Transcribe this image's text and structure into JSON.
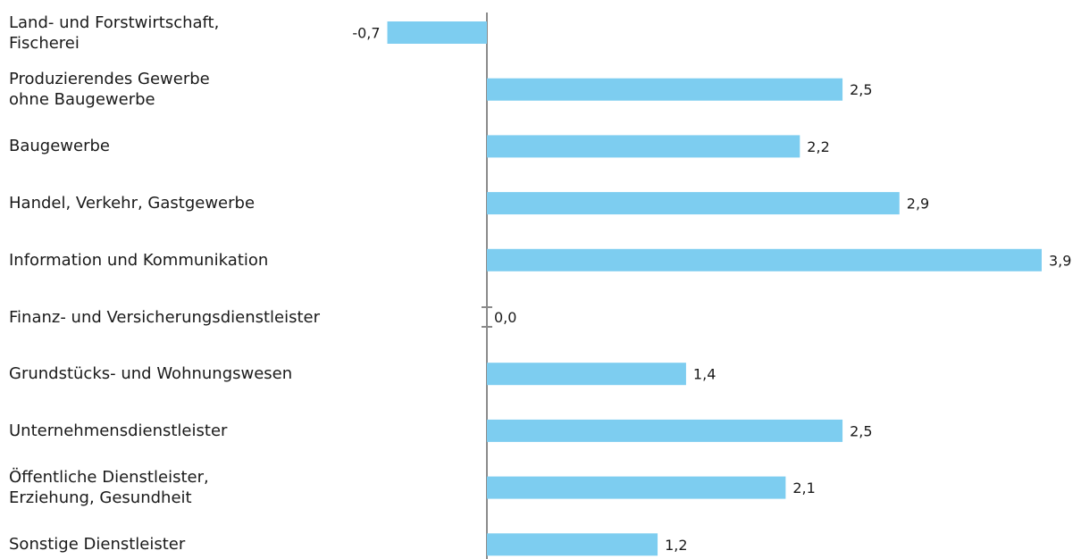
{
  "chart_data": {
    "type": "bar",
    "orientation": "horizontal",
    "categories": [
      "Land- und Forstwirtschaft,\nFischerei",
      "Produzierendes Gewerbe\nohne Baugewerbe",
      "Baugewerbe",
      "Handel, Verkehr, Gastgewerbe",
      "Information und Kommunikation",
      "Finanz- und Versicherungsdienstleister",
      "Grundstücks- und Wohnungswesen",
      "Unternehmensdienstleister",
      "Öffentliche Dienstleister,\nErziehung, Gesundheit",
      "Sonstige Dienstleister"
    ],
    "values": [
      -0.7,
      2.5,
      2.2,
      2.9,
      3.9,
      0.0,
      1.4,
      2.5,
      2.1,
      1.2
    ],
    "value_labels": [
      "-0,7",
      "2,5",
      "2,2",
      "2,9",
      "3,9",
      "0,0",
      "1,4",
      "2,5",
      "2,1",
      "1,2"
    ],
    "bar_color": "#7dcdf0",
    "axis_color": "#8a8a8a",
    "xlim": [
      -0.7,
      3.9
    ],
    "grid": false,
    "legend": "none"
  }
}
